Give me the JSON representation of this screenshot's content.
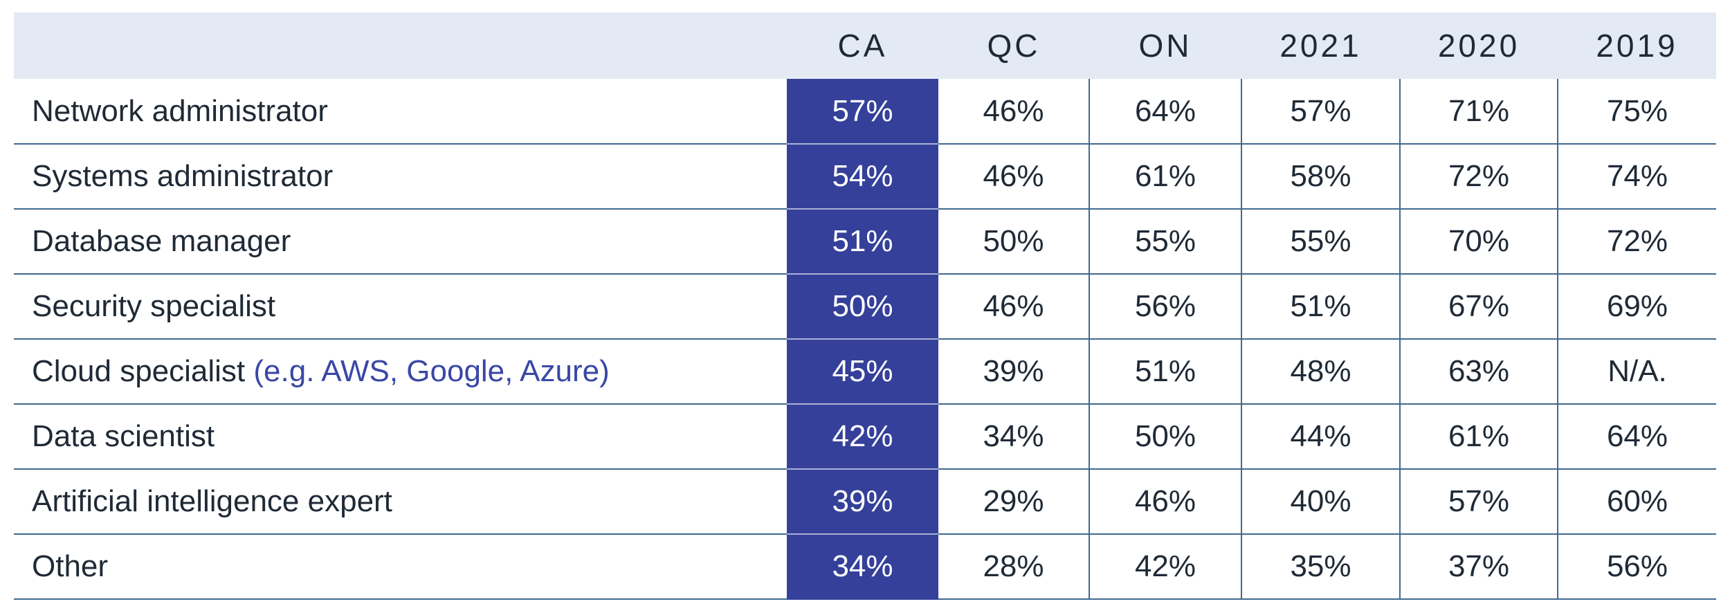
{
  "chart_data": {
    "type": "table",
    "columns": [
      "",
      "CA",
      "QC",
      "ON",
      "2021",
      "2020",
      "2019"
    ],
    "rows": [
      {
        "label": "Network administrator",
        "note": "",
        "values": [
          "57%",
          "46%",
          "64%",
          "57%",
          "71%",
          "75%"
        ]
      },
      {
        "label": "Systems administrator",
        "note": "",
        "values": [
          "54%",
          "46%",
          "61%",
          "58%",
          "72%",
          "74%"
        ]
      },
      {
        "label": "Database manager",
        "note": "",
        "values": [
          "51%",
          "50%",
          "55%",
          "55%",
          "70%",
          "72%"
        ]
      },
      {
        "label": "Security specialist",
        "note": "",
        "values": [
          "50%",
          "46%",
          "56%",
          "51%",
          "67%",
          "69%"
        ]
      },
      {
        "label": "Cloud specialist",
        "note": "(e.g. AWS, Google, Azure)",
        "values": [
          "45%",
          "39%",
          "51%",
          "48%",
          "63%",
          "N/A."
        ]
      },
      {
        "label": "Data scientist",
        "note": "",
        "values": [
          "42%",
          "34%",
          "50%",
          "44%",
          "61%",
          "64%"
        ]
      },
      {
        "label": "Artificial intelligence expert",
        "note": "",
        "values": [
          "39%",
          "29%",
          "46%",
          "40%",
          "57%",
          "60%"
        ]
      },
      {
        "label": "Other",
        "note": "",
        "values": [
          "34%",
          "28%",
          "42%",
          "35%",
          "37%",
          "56%"
        ]
      }
    ],
    "highlight_column": "CA",
    "colors": {
      "header_bg": "#e3eaf4",
      "highlight_bg": "#35409a",
      "highlight_text": "#ffffff",
      "rule": "#3f6a8e",
      "note_text": "#3a47a6",
      "body_text": "#1f2a36"
    }
  }
}
